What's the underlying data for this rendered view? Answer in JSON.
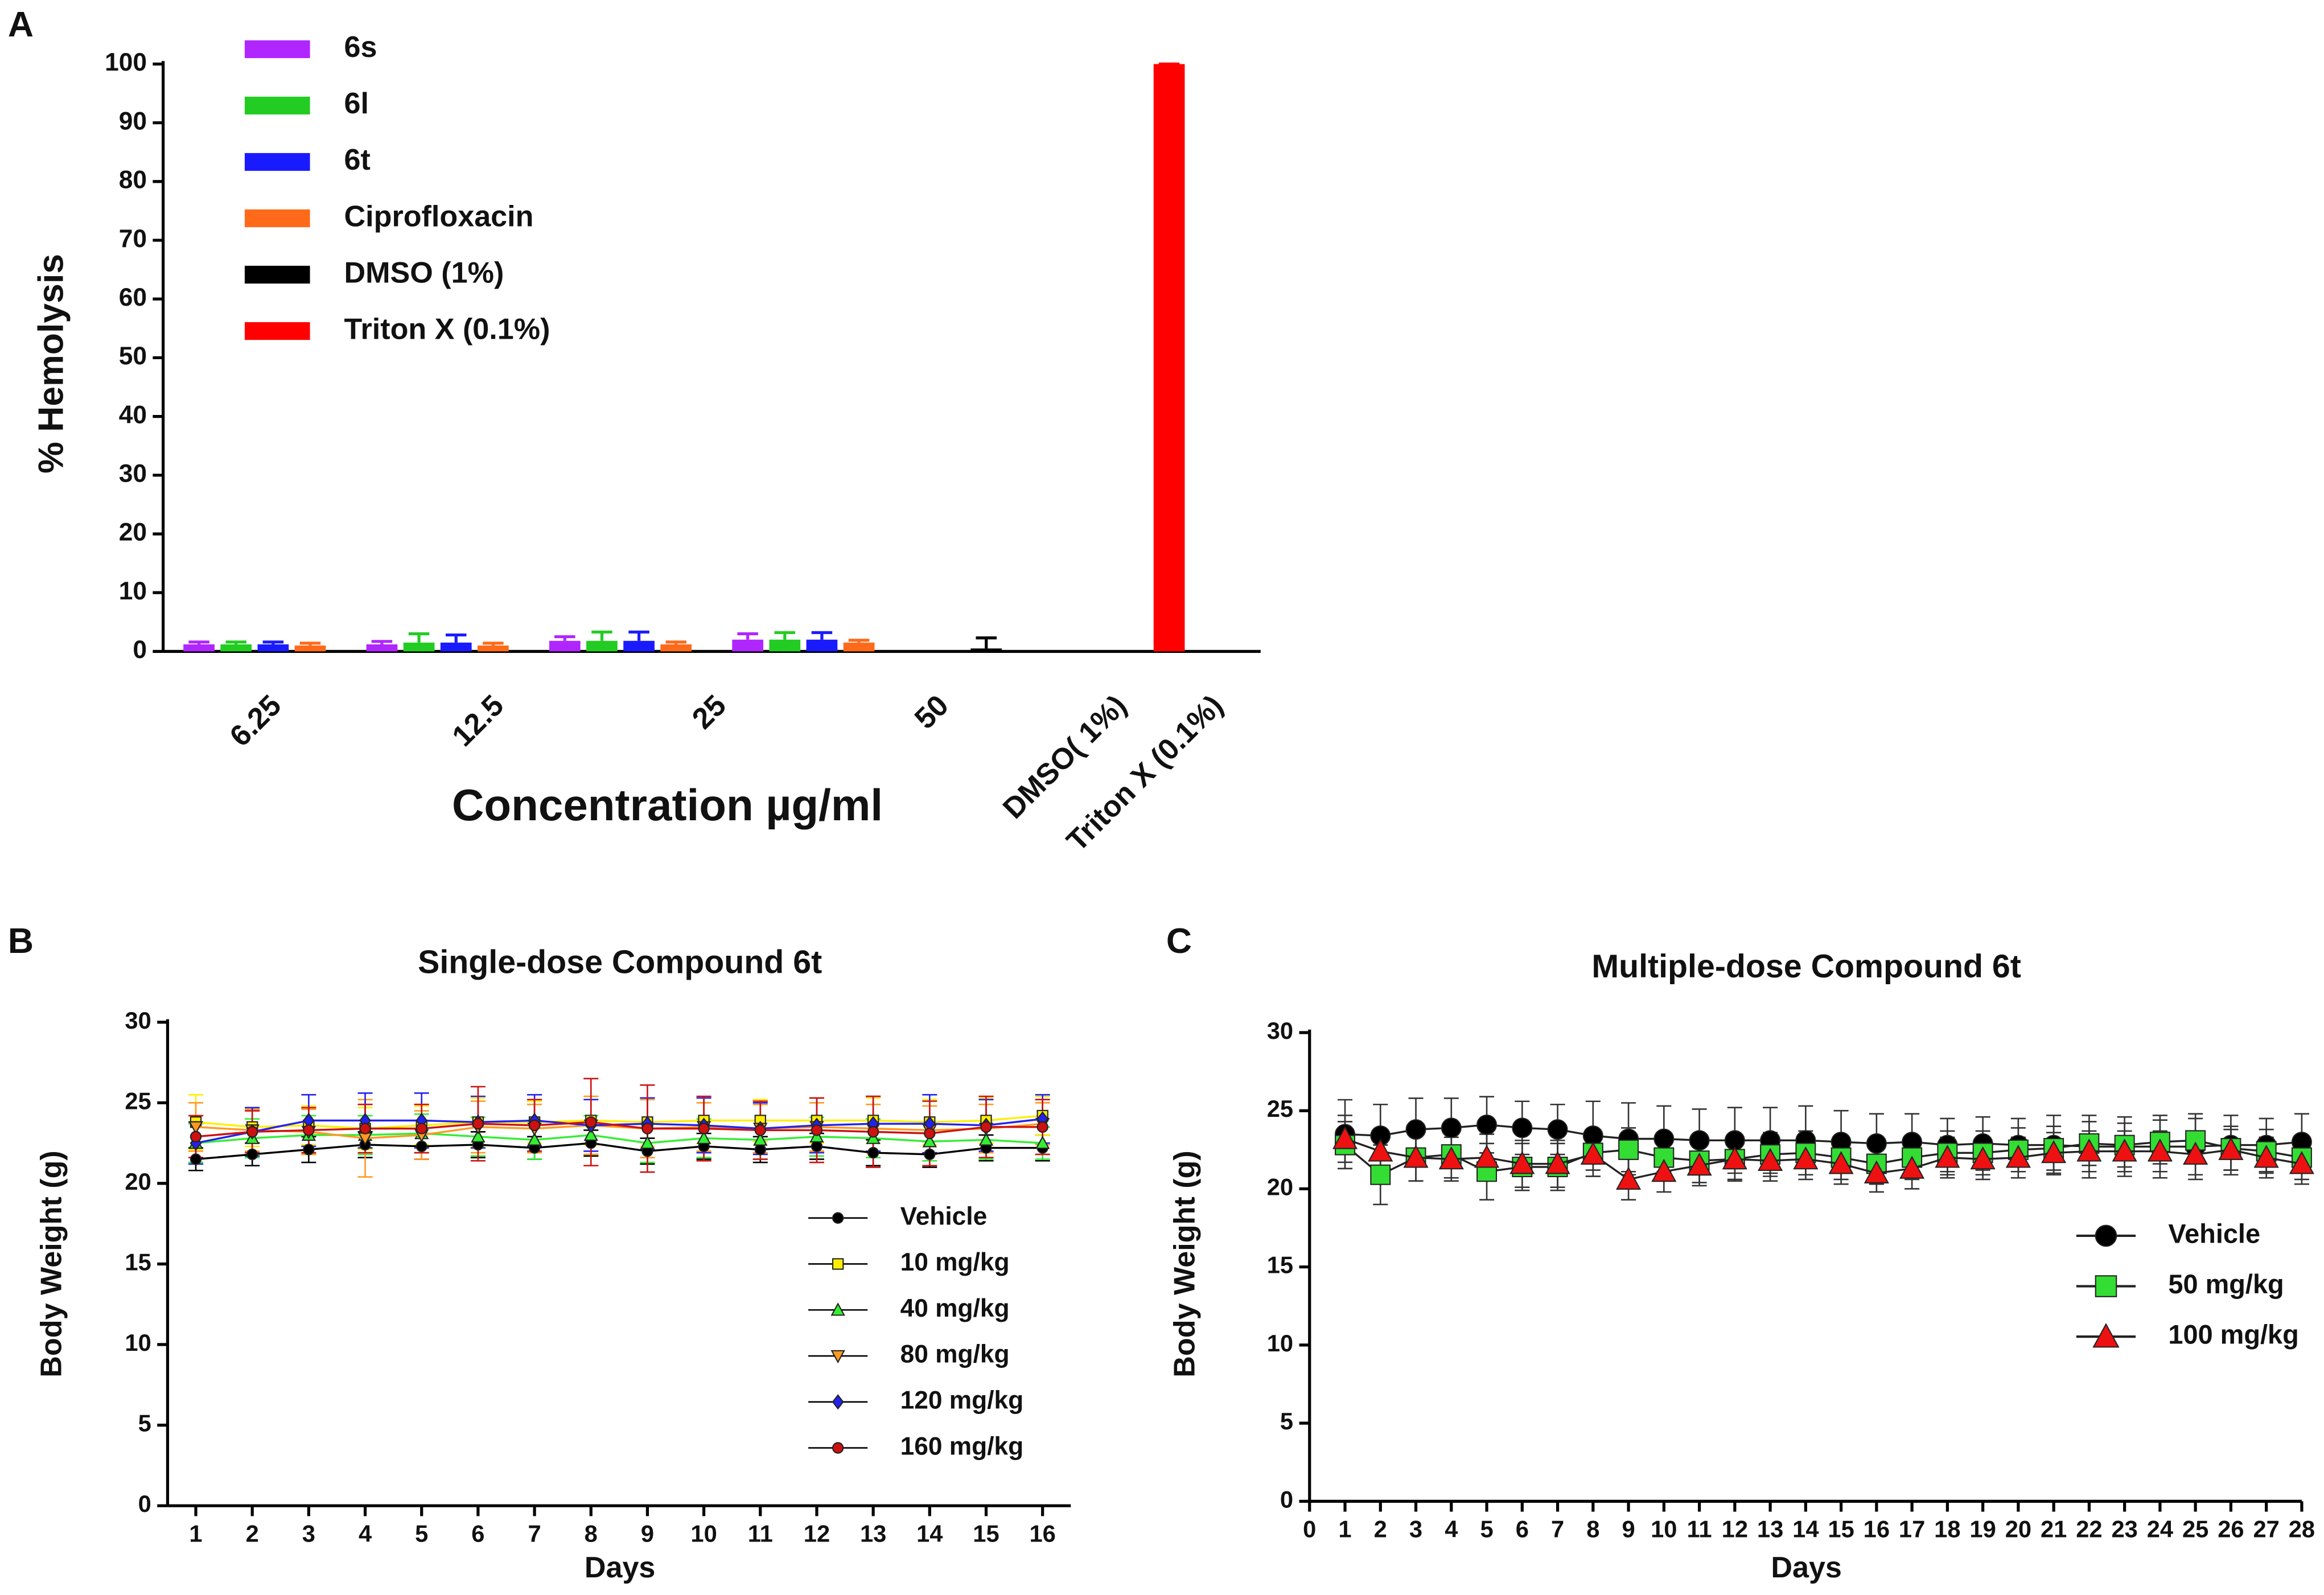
{
  "chart_data": [
    {
      "type": "bar",
      "panel": "A",
      "y_label": "% Hemolysis",
      "x_label": "Concentration µg/ml",
      "categories": [
        "6.25",
        "12.5",
        "25",
        "50",
        "DMSO( 1%)",
        "Triton X (0.1%)"
      ],
      "series": [
        {
          "name": "6s",
          "color": "#b026ff",
          "values": [
            1.2,
            1.2,
            1.8,
            2.0,
            null,
            null
          ],
          "errors": [
            0.4,
            0.5,
            0.7,
            1.0,
            null,
            null
          ]
        },
        {
          "name": "6l",
          "color": "#22cc22",
          "values": [
            1.2,
            1.5,
            1.8,
            2.0,
            null,
            null
          ],
          "errors": [
            0.4,
            1.5,
            1.5,
            1.2,
            null,
            null
          ]
        },
        {
          "name": "6t",
          "color": "#1a1aff",
          "values": [
            1.2,
            1.5,
            1.8,
            2.0,
            null,
            null
          ],
          "errors": [
            0.4,
            1.3,
            1.5,
            1.2,
            null,
            null
          ]
        },
        {
          "name": "Ciprofloxacin",
          "color": "#ff6a1a",
          "values": [
            1.0,
            1.0,
            1.2,
            1.5,
            null,
            null
          ],
          "errors": [
            0.4,
            0.4,
            0.4,
            0.4,
            null,
            null
          ]
        },
        {
          "name": "DMSO (1%)",
          "color": "#000000",
          "values": [
            null,
            null,
            null,
            null,
            0.5,
            null
          ],
          "errors": [
            null,
            null,
            null,
            null,
            1.8,
            null
          ]
        },
        {
          "name": "Triton X (0.1%)",
          "color": "#ff0000",
          "values": [
            null,
            null,
            null,
            null,
            null,
            100
          ],
          "errors": [
            null,
            null,
            null,
            null,
            null,
            0
          ]
        }
      ],
      "ylim": [
        0,
        100
      ],
      "yticks": [
        0,
        10,
        20,
        30,
        40,
        50,
        60,
        70,
        80,
        90,
        100
      ],
      "legend": "upper left"
    },
    {
      "type": "line",
      "panel": "B",
      "title": "Single-dose Compound 6t",
      "x_label": "Days",
      "y_label": "Body Weight (g)",
      "x": [
        1,
        2,
        3,
        4,
        5,
        6,
        7,
        8,
        9,
        10,
        11,
        12,
        13,
        14,
        15,
        16
      ],
      "series": [
        {
          "name": "Vehicle",
          "color": "#000000",
          "marker": "circle",
          "values": [
            21.5,
            21.8,
            22.1,
            22.4,
            22.3,
            22.4,
            22.2,
            22.5,
            22.0,
            22.3,
            22.1,
            22.3,
            21.9,
            21.8,
            22.2,
            22.2
          ],
          "errors": [
            0.7,
            0.7,
            0.8,
            0.8,
            0.8,
            0.8,
            0.7,
            0.8,
            0.8,
            0.8,
            0.8,
            0.8,
            0.8,
            0.8,
            0.8,
            0.8
          ]
        },
        {
          "name": "10 mg/kg",
          "color": "#ffee00",
          "marker": "square",
          "values": [
            23.8,
            23.5,
            23.6,
            23.4,
            23.6,
            23.8,
            23.8,
            23.9,
            23.8,
            23.9,
            23.9,
            23.9,
            23.9,
            23.8,
            23.9,
            24.2
          ],
          "errors": [
            1.7,
            1.2,
            1.2,
            1.3,
            1.2,
            1.5,
            1.3,
            1.5,
            1.5,
            1.4,
            1.3,
            1.4,
            1.4,
            1.4,
            1.4,
            1.2
          ]
        },
        {
          "name": "40 mg/kg",
          "color": "#33ee33",
          "marker": "triangle-up",
          "values": [
            22.5,
            22.8,
            23.0,
            23.0,
            23.1,
            22.9,
            22.7,
            23.0,
            22.5,
            22.8,
            22.7,
            22.9,
            22.8,
            22.6,
            22.7,
            22.5
          ],
          "errors": [
            1.2,
            1.2,
            1.2,
            1.2,
            1.2,
            1.2,
            1.2,
            1.2,
            1.2,
            1.2,
            1.2,
            1.2,
            1.2,
            1.2,
            1.2,
            1.0
          ]
        },
        {
          "name": "80 mg/kg",
          "color": "#ff9922",
          "marker": "triangle-down",
          "values": [
            23.5,
            23.3,
            23.2,
            22.8,
            23.0,
            23.5,
            23.4,
            23.6,
            23.4,
            23.5,
            23.4,
            23.5,
            23.4,
            23.3,
            23.4,
            23.7
          ],
          "errors": [
            1.5,
            1.3,
            1.4,
            2.4,
            1.5,
            1.6,
            1.5,
            1.8,
            1.8,
            1.5,
            1.5,
            1.5,
            1.5,
            1.5,
            1.5,
            1.3
          ]
        },
        {
          "name": "120 mg/kg",
          "color": "#2222ee",
          "marker": "diamond",
          "values": [
            22.5,
            23.2,
            23.9,
            23.9,
            23.9,
            23.8,
            23.9,
            23.6,
            23.7,
            23.6,
            23.4,
            23.6,
            23.7,
            23.7,
            23.6,
            24.0
          ],
          "errors": [
            1.3,
            1.5,
            1.6,
            1.7,
            1.7,
            1.6,
            1.6,
            1.6,
            1.6,
            1.7,
            1.6,
            1.7,
            1.7,
            1.8,
            1.6,
            1.5
          ]
        },
        {
          "name": "160 mg/kg",
          "color": "#cc1111",
          "marker": "circle",
          "values": [
            22.9,
            23.2,
            23.3,
            23.4,
            23.4,
            23.7,
            23.6,
            23.8,
            23.4,
            23.4,
            23.3,
            23.3,
            23.2,
            23.1,
            23.5,
            23.5
          ],
          "errors": [
            1.3,
            1.3,
            1.4,
            1.5,
            1.5,
            2.3,
            1.6,
            2.7,
            2.7,
            2.0,
            1.8,
            2.0,
            2.2,
            2.0,
            1.9,
            1.7
          ]
        }
      ],
      "xlim": [
        0.5,
        16.5
      ],
      "xticks": [
        1,
        2,
        3,
        4,
        5,
        6,
        7,
        8,
        9,
        10,
        11,
        12,
        13,
        14,
        15,
        16
      ],
      "ylim": [
        0,
        30
      ],
      "yticks": [
        0,
        5,
        10,
        15,
        20,
        25,
        30
      ],
      "legend": "lower right"
    },
    {
      "type": "line",
      "panel": "C",
      "title": "Multiple-dose Compound 6t",
      "x_label": "Days",
      "y_label": "Body Weight (g)",
      "x": [
        1,
        2,
        3,
        4,
        5,
        6,
        7,
        8,
        9,
        10,
        11,
        12,
        13,
        14,
        15,
        16,
        17,
        18,
        19,
        20,
        21,
        22,
        23,
        24,
        25,
        26,
        27,
        28
      ],
      "series": [
        {
          "name": "Vehicle",
          "color": "#000000",
          "marker": "circle",
          "values": [
            23.5,
            23.4,
            23.8,
            23.9,
            24.1,
            23.9,
            23.8,
            23.4,
            23.2,
            23.2,
            23.1,
            23.1,
            23.1,
            23.1,
            23.0,
            22.9,
            23.0,
            22.8,
            22.9,
            22.8,
            22.8,
            22.7,
            22.7,
            22.7,
            22.7,
            22.8,
            22.8,
            23.0
          ],
          "errors": [
            2.2,
            2.0,
            2.0,
            1.9,
            1.8,
            1.7,
            1.6,
            2.2,
            2.3,
            2.1,
            2.0,
            2.1,
            2.1,
            2.2,
            2.0,
            1.9,
            1.8,
            1.7,
            1.7,
            1.7,
            1.9,
            2.0,
            1.9,
            2.0,
            2.1,
            1.9,
            1.7,
            1.8
          ]
        },
        {
          "name": "50 mg/kg",
          "color": "#33dd33",
          "marker": "square",
          "values": [
            22.8,
            20.9,
            22.0,
            22.2,
            21.1,
            21.4,
            21.4,
            22.3,
            22.5,
            22.0,
            21.8,
            21.9,
            22.2,
            22.3,
            22.0,
            21.6,
            22.0,
            22.3,
            22.3,
            22.5,
            22.6,
            22.9,
            22.8,
            23.0,
            23.1,
            22.6,
            22.4,
            22.0
          ],
          "errors": [
            1.5,
            1.9,
            1.5,
            1.5,
            1.8,
            1.5,
            1.5,
            1.5,
            1.4,
            1.4,
            1.4,
            1.4,
            1.4,
            1.4,
            1.4,
            1.3,
            1.4,
            1.4,
            1.4,
            1.4,
            1.4,
            1.4,
            1.4,
            1.4,
            1.4,
            1.4,
            1.4,
            1.4
          ]
        },
        {
          "name": "100 mg/kg",
          "color": "#ee1111",
          "marker": "triangle-up",
          "values": [
            23.2,
            22.4,
            22.0,
            21.9,
            22.0,
            21.6,
            21.6,
            22.2,
            20.6,
            21.1,
            21.5,
            21.9,
            21.8,
            21.9,
            21.6,
            21.0,
            21.3,
            22.0,
            21.9,
            22.0,
            22.3,
            22.4,
            22.4,
            22.4,
            22.2,
            22.5,
            22.0,
            21.6
          ],
          "errors": [
            1.5,
            1.4,
            1.5,
            1.4,
            1.5,
            1.5,
            1.5,
            1.4,
            1.3,
            1.3,
            1.3,
            1.3,
            1.3,
            1.3,
            1.3,
            1.2,
            1.3,
            1.3,
            1.3,
            1.3,
            1.3,
            1.3,
            1.3,
            1.3,
            1.3,
            1.3,
            1.3,
            1.3
          ]
        }
      ],
      "xlim": [
        0,
        28
      ],
      "xticks": [
        0,
        1,
        2,
        3,
        4,
        5,
        6,
        7,
        8,
        9,
        10,
        11,
        12,
        13,
        14,
        15,
        16,
        17,
        18,
        19,
        20,
        21,
        22,
        23,
        24,
        25,
        26,
        27,
        28
      ],
      "ylim": [
        0,
        30
      ],
      "yticks": [
        0,
        5,
        10,
        15,
        20,
        25,
        30
      ],
      "legend": "center right"
    }
  ]
}
